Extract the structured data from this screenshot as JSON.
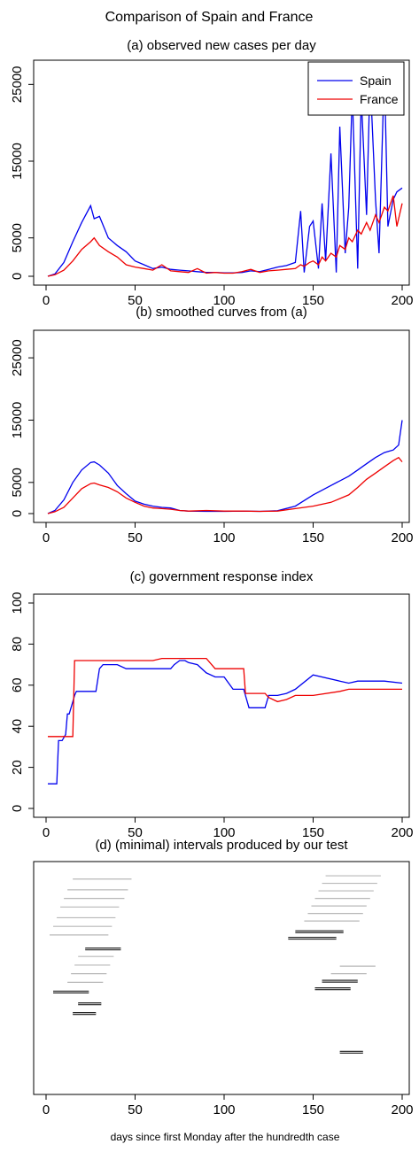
{
  "figure": {
    "title": "Comparison of Spain and France",
    "xlabel": "days since first Monday after the hundredth case"
  },
  "colors": {
    "spain": "#0000ee",
    "france": "#ee0000",
    "interval_gray": "#b8b8b8",
    "interval_dark": "#222222"
  },
  "chart_data": [
    {
      "type": "line",
      "title": "(a) observed new cases per day",
      "xlim": [
        0,
        200
      ],
      "ylim": [
        0,
        27000
      ],
      "xticks": [
        0,
        50,
        100,
        150,
        200
      ],
      "yticks": [
        0,
        5000,
        15000,
        25000
      ],
      "legend": {
        "position": "top-right",
        "entries": [
          "Spain",
          "France"
        ]
      },
      "x": [
        1,
        5,
        10,
        15,
        20,
        25,
        27,
        30,
        35,
        40,
        45,
        50,
        55,
        60,
        65,
        70,
        75,
        80,
        85,
        90,
        95,
        100,
        105,
        110,
        115,
        120,
        125,
        130,
        135,
        140,
        143,
        145,
        148,
        150,
        153,
        155,
        157,
        160,
        163,
        165,
        168,
        170,
        172,
        175,
        177,
        180,
        182,
        185,
        187,
        190,
        192,
        195,
        197,
        200
      ],
      "series": [
        {
          "name": "Spain",
          "values": [
            0,
            300,
            1800,
            4500,
            7000,
            9200,
            7500,
            7800,
            5000,
            4000,
            3200,
            2000,
            1500,
            1000,
            1200,
            900,
            800,
            700,
            600,
            500,
            500,
            450,
            450,
            500,
            700,
            600,
            900,
            1200,
            1400,
            1800,
            8500,
            500,
            6500,
            7200,
            1000,
            9500,
            2000,
            16000,
            500,
            19500,
            3000,
            9000,
            24000,
            1000,
            23500,
            8000,
            26000,
            10000,
            3000,
            27000,
            6500,
            10000,
            11000,
            11500
          ]
        },
        {
          "name": "France",
          "values": [
            0,
            200,
            800,
            2000,
            3500,
            4500,
            5000,
            4000,
            3200,
            2500,
            1500,
            1200,
            1000,
            800,
            1500,
            700,
            600,
            500,
            1000,
            400,
            500,
            400,
            400,
            600,
            900,
            500,
            700,
            800,
            900,
            1000,
            1500,
            1300,
            1800,
            2000,
            1500,
            2500,
            2000,
            3000,
            2500,
            4000,
            3500,
            5000,
            4500,
            6000,
            5500,
            7000,
            6000,
            8000,
            7000,
            9000,
            8500,
            10500,
            6500,
            9500
          ]
        }
      ]
    },
    {
      "type": "line",
      "title": "(b) smoothed curves from (a)",
      "xlim": [
        0,
        200
      ],
      "ylim": [
        0,
        28000
      ],
      "xticks": [
        0,
        50,
        100,
        150,
        200
      ],
      "yticks": [
        0,
        5000,
        15000,
        25000
      ],
      "x": [
        1,
        5,
        10,
        15,
        20,
        25,
        27,
        30,
        35,
        40,
        45,
        50,
        55,
        60,
        65,
        70,
        75,
        80,
        90,
        100,
        110,
        120,
        130,
        140,
        150,
        160,
        170,
        175,
        180,
        185,
        190,
        195,
        198,
        200
      ],
      "series": [
        {
          "name": "Spain",
          "values": [
            0,
            500,
            2200,
            5000,
            7000,
            8200,
            8300,
            7800,
            6500,
            4500,
            3200,
            2000,
            1500,
            1200,
            1000,
            900,
            500,
            400,
            350,
            350,
            400,
            350,
            450,
            1200,
            3000,
            4500,
            6000,
            7000,
            8000,
            9000,
            9800,
            10200,
            11000,
            15000
          ]
        },
        {
          "name": "France",
          "values": [
            0,
            300,
            1000,
            2500,
            4000,
            4800,
            4900,
            4600,
            4200,
            3500,
            2500,
            1800,
            1200,
            900,
            800,
            700,
            500,
            400,
            500,
            400,
            400,
            350,
            400,
            800,
            1200,
            1800,
            3000,
            4200,
            5500,
            6500,
            7500,
            8500,
            9000,
            8300
          ]
        }
      ]
    },
    {
      "type": "line",
      "title": "(c) government response index",
      "xlim": [
        0,
        200
      ],
      "ylim": [
        0,
        100
      ],
      "xticks": [
        0,
        50,
        100,
        150,
        200
      ],
      "yticks": [
        0,
        20,
        40,
        60,
        80,
        100
      ],
      "x": [
        1,
        6,
        7,
        9,
        11,
        12,
        13,
        15,
        16,
        17,
        21,
        28,
        30,
        32,
        35,
        40,
        45,
        50,
        55,
        60,
        65,
        70,
        72,
        75,
        78,
        80,
        85,
        90,
        95,
        100,
        105,
        111,
        112,
        114,
        115,
        120,
        123,
        125,
        130,
        135,
        140,
        150,
        165,
        170,
        175,
        180,
        190,
        200
      ],
      "series": [
        {
          "name": "Spain",
          "values": [
            12,
            12,
            33,
            33,
            36,
            46,
            46,
            52,
            55,
            57,
            57,
            57,
            68,
            70,
            70,
            70,
            68,
            68,
            68,
            68,
            68,
            68,
            70,
            72,
            72,
            71,
            70,
            66,
            64,
            64,
            58,
            58,
            55,
            49,
            49,
            49,
            49,
            55,
            55,
            56,
            58,
            65,
            62,
            61,
            62,
            62,
            62,
            61
          ]
        },
        {
          "name": "France",
          "values": [
            35,
            35,
            35,
            35,
            35,
            35,
            35,
            35,
            72,
            72,
            72,
            72,
            72,
            72,
            72,
            72,
            72,
            72,
            72,
            72,
            73,
            73,
            73,
            73,
            73,
            73,
            73,
            73,
            68,
            68,
            68,
            68,
            56,
            56,
            56,
            56,
            56,
            54,
            52,
            53,
            55,
            55,
            57,
            58,
            58,
            58,
            58,
            58
          ]
        }
      ]
    },
    {
      "type": "interval",
      "title": "(d) (minimal) intervals produced by our test",
      "xlim": [
        0,
        200
      ],
      "xticks": [
        0,
        50,
        100,
        150,
        200
      ],
      "intervals": [
        {
          "start": 15,
          "end": 48,
          "level": 0.04,
          "emph": false
        },
        {
          "start": 12,
          "end": 46,
          "level": 0.09,
          "emph": false
        },
        {
          "start": 10,
          "end": 44,
          "level": 0.13,
          "emph": false
        },
        {
          "start": 8,
          "end": 41,
          "level": 0.17,
          "emph": false
        },
        {
          "start": 6,
          "end": 39,
          "level": 0.22,
          "emph": false
        },
        {
          "start": 4,
          "end": 37,
          "level": 0.26,
          "emph": false
        },
        {
          "start": 2,
          "end": 35,
          "level": 0.3,
          "emph": false
        },
        {
          "start": 22,
          "end": 42,
          "level": 0.365,
          "emph": true
        },
        {
          "start": 18,
          "end": 38,
          "level": 0.4,
          "emph": false
        },
        {
          "start": 16,
          "end": 36,
          "level": 0.44,
          "emph": false
        },
        {
          "start": 14,
          "end": 34,
          "level": 0.48,
          "emph": false
        },
        {
          "start": 12,
          "end": 32,
          "level": 0.52,
          "emph": false
        },
        {
          "start": 4,
          "end": 24,
          "level": 0.565,
          "emph": true
        },
        {
          "start": 18,
          "end": 31,
          "level": 0.62,
          "emph": true
        },
        {
          "start": 15,
          "end": 28,
          "level": 0.665,
          "emph": true
        },
        {
          "start": 157,
          "end": 188,
          "level": 0.025,
          "emph": false
        },
        {
          "start": 155,
          "end": 186,
          "level": 0.06,
          "emph": false
        },
        {
          "start": 153,
          "end": 184,
          "level": 0.095,
          "emph": false
        },
        {
          "start": 151,
          "end": 182,
          "level": 0.13,
          "emph": false
        },
        {
          "start": 149,
          "end": 180,
          "level": 0.165,
          "emph": false
        },
        {
          "start": 147,
          "end": 178,
          "level": 0.2,
          "emph": false
        },
        {
          "start": 145,
          "end": 176,
          "level": 0.235,
          "emph": false
        },
        {
          "start": 140,
          "end": 167,
          "level": 0.285,
          "emph": true
        },
        {
          "start": 136,
          "end": 163,
          "level": 0.315,
          "emph": true
        },
        {
          "start": 165,
          "end": 185,
          "level": 0.445,
          "emph": false
        },
        {
          "start": 160,
          "end": 180,
          "level": 0.48,
          "emph": false
        },
        {
          "start": 155,
          "end": 175,
          "level": 0.515,
          "emph": true
        },
        {
          "start": 151,
          "end": 171,
          "level": 0.55,
          "emph": true
        },
        {
          "start": 165,
          "end": 178,
          "level": 0.845,
          "emph": true
        }
      ]
    }
  ]
}
